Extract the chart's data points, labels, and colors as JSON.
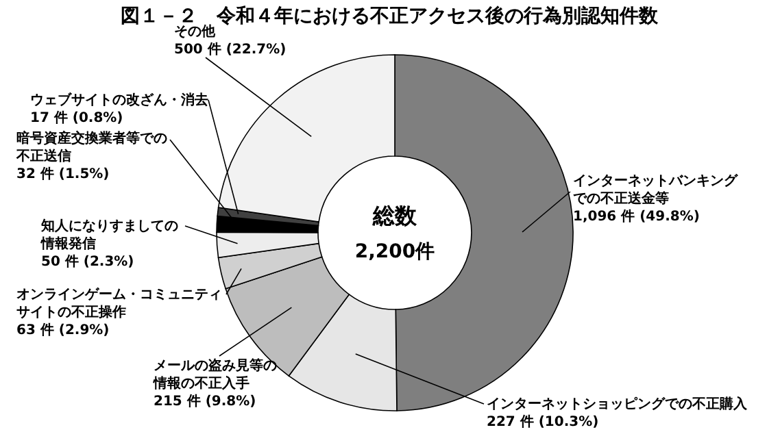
{
  "chart_data": {
    "type": "donut",
    "title": "図１－２　令和４年における不正アクセス後の行為別認知件数",
    "categories": [
      "インターネットバンキングでの不正送金等",
      "インターネットショッピングでの不正購入",
      "メールの盗み見等の情報の不正入手",
      "オンラインゲーム・コミュニティサイトの不正操作",
      "知人になりすましての情報発信",
      "暗号資産交換業者等での不正送信",
      "ウェブサイトの改ざん・消去",
      "その他"
    ],
    "values": [
      1096,
      227,
      215,
      63,
      50,
      32,
      17,
      500
    ],
    "value_labels": [
      "1,096 件 (49.8%)",
      "227 件 (10.3%)",
      "215 件 (9.8%)",
      "63 件 (2.9%)",
      "50 件 (2.3%)",
      "32 件 (1.5%)",
      "17 件 (0.8%)",
      "500 件 (22.7%)"
    ],
    "colors": [
      "#7f7f7f",
      "#e6e6e6",
      "#bdbdbd",
      "#d0d0d0",
      "#ededed",
      "#000000",
      "#404040",
      "#f2f2f2"
    ],
    "annotations": [
      "総数",
      "2,200件"
    ]
  }
}
